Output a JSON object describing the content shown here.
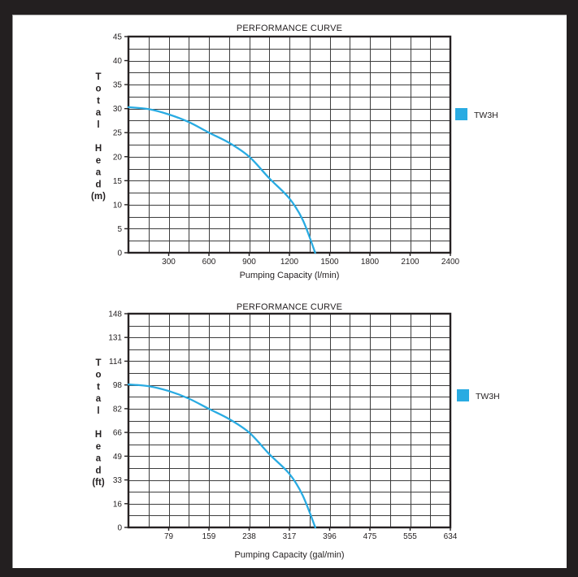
{
  "page": {
    "frame_color": "#231f20",
    "paper_color": "#ffffff"
  },
  "colors": {
    "grid": "#3d3d3d",
    "plot_border": "#262223",
    "text": "#231f20",
    "curve": "#29ABE2"
  },
  "chart_data": [
    {
      "type": "line",
      "title": "PERFORMANCE CURVE",
      "xlabel": "Pumping Capacity (l/min)",
      "ylabel": "Total Head (m)",
      "legend": {
        "label": "TW3H",
        "color": "#29ABE2",
        "position": "right"
      },
      "x_axis": {
        "min": 0,
        "max": 2400,
        "gridline_count": 16,
        "tick_labels": [
          "300",
          "600",
          "900",
          "1200",
          "1500",
          "1800",
          "2100",
          "2400"
        ]
      },
      "y_axis": {
        "min": 0,
        "max": 45,
        "gridline_count": 18,
        "tick_labels": [
          "45",
          "40",
          "35",
          "30",
          "25",
          "20",
          "15",
          "10",
          "5",
          "0"
        ]
      },
      "grid": true,
      "series": [
        {
          "name": "TW3H",
          "color": "#29ABE2",
          "points": [
            [
              0,
              30.3
            ],
            [
              150,
              29.9
            ],
            [
              300,
              28.8
            ],
            [
              450,
              27.2
            ],
            [
              600,
              25.0
            ],
            [
              750,
              22.9
            ],
            [
              900,
              20.0
            ],
            [
              1050,
              15.5
            ],
            [
              1200,
              11.3
            ],
            [
              1300,
              6.8
            ],
            [
              1392,
              0
            ]
          ]
        }
      ]
    },
    {
      "type": "line",
      "title": "PERFORMANCE CURVE",
      "xlabel": "Pumping Capacity (gal/min)",
      "ylabel": "Total Head (ft)",
      "legend": {
        "label": "TW3H",
        "color": "#29ABE2",
        "position": "right"
      },
      "x_axis": {
        "min": 0,
        "max": 634,
        "gridline_count": 16,
        "tick_labels": [
          "79",
          "159",
          "238",
          "317",
          "396",
          "475",
          "555",
          "634"
        ]
      },
      "y_axis": {
        "min": 0,
        "max": 148,
        "gridline_count": 18,
        "tick_labels": [
          "148",
          "131",
          "114",
          "98",
          "82",
          "66",
          "49",
          "33",
          "16",
          "0"
        ]
      },
      "grid": true,
      "series": [
        {
          "name": "TW3H",
          "color": "#29ABE2",
          "points": [
            [
              0,
              99.0
            ],
            [
              40,
              97.8
            ],
            [
              79,
              94.5
            ],
            [
              119,
              89.2
            ],
            [
              159,
              82.0
            ],
            [
              198,
              75.1
            ],
            [
              238,
              65.6
            ],
            [
              277,
              50.9
            ],
            [
              317,
              37.1
            ],
            [
              343,
              22.3
            ],
            [
              368,
              0
            ]
          ]
        }
      ]
    }
  ]
}
